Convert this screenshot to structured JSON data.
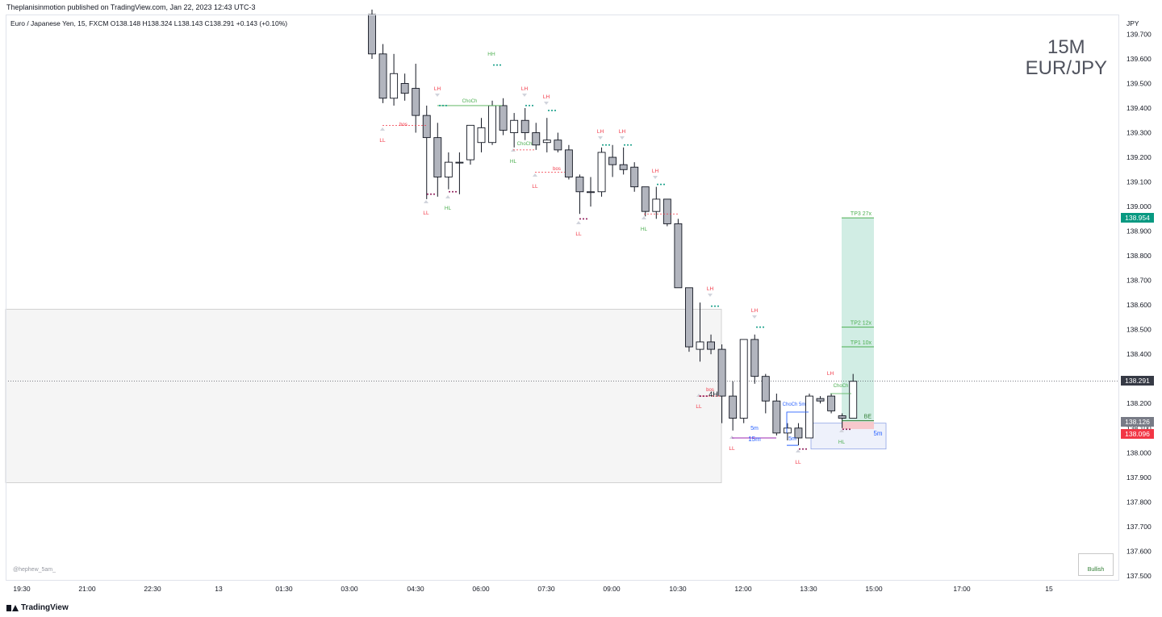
{
  "header": {
    "published": "Theplanisinmotion published on TradingView.com, Jan 22, 2023 12:43 UTC-3",
    "legend": "Euro / Japanese Yen, 15, FXCM  O138.148  H138.324  L138.143  C138.291  +0.143 (+0.10%)"
  },
  "symbol_title": {
    "line1": "15M",
    "line2": "EUR/JPY"
  },
  "watermark": "@hephew_5am_",
  "bullish_label": "Bullish",
  "brand": "TradingView",
  "colors": {
    "candle_up_fill": "#ffffff",
    "candle_down_fill": "#b2b5be",
    "candle_border": "#131722",
    "tp_zone": "#d1ede4",
    "tp_line": "#4caf50",
    "stop_zone": "#f7c8cc",
    "ob_zone": "#f5f5f5",
    "bos_line": "#f23645",
    "choch_green": "#4caf50",
    "label_red": "#f23645",
    "label_green": "#4caf50",
    "label_blue": "#2962ff",
    "badge_green": "#089981",
    "badge_dark": "#363a45",
    "badge_grey": "#787b86",
    "badge_red": "#f23645"
  },
  "chart_data": {
    "type": "candlestick",
    "ylabel": "JPY",
    "ylim": [
      137.48,
      139.78
    ],
    "yticks": [
      "139.700",
      "139.600",
      "139.500",
      "139.400",
      "139.300",
      "139.200",
      "139.100",
      "139.000",
      "138.900",
      "138.800",
      "138.700",
      "138.600",
      "138.500",
      "138.400",
      "138.300",
      "138.200",
      "138.100",
      "138.000",
      "137.900",
      "137.800",
      "137.700",
      "137.600",
      "137.500"
    ],
    "xticks": [
      "19:30",
      "21:00",
      "22:30",
      "13",
      "01:30",
      "03:00",
      "04:30",
      "06:00",
      "07:30",
      "09:00",
      "10:30",
      "12:00",
      "13:30",
      "15:00",
      "17:00",
      "15"
    ],
    "candles": [
      [
        139.78,
        139.8,
        139.6,
        139.62
      ],
      [
        139.62,
        139.66,
        139.42,
        139.44
      ],
      [
        139.44,
        139.62,
        139.41,
        139.54
      ],
      [
        139.5,
        139.54,
        139.43,
        139.46
      ],
      [
        139.48,
        139.58,
        139.3,
        139.37
      ],
      [
        139.37,
        139.41,
        139.03,
        139.28
      ],
      [
        139.28,
        139.34,
        139.04,
        139.12
      ],
      [
        139.12,
        139.22,
        139.07,
        139.18
      ],
      [
        139.18,
        139.22,
        139.05,
        139.18
      ],
      [
        139.19,
        139.33,
        139.17,
        139.33
      ],
      [
        139.26,
        139.36,
        139.22,
        139.32
      ],
      [
        139.26,
        139.43,
        139.25,
        139.41
      ],
      [
        139.41,
        139.44,
        139.29,
        139.31
      ],
      [
        139.3,
        139.38,
        139.24,
        139.35
      ],
      [
        139.35,
        139.4,
        139.27,
        139.3
      ],
      [
        139.3,
        139.34,
        139.23,
        139.25
      ],
      [
        139.26,
        139.36,
        139.22,
        139.27
      ],
      [
        139.27,
        139.3,
        139.22,
        139.23
      ],
      [
        139.23,
        139.25,
        139.11,
        139.12
      ],
      [
        139.12,
        139.13,
        138.97,
        139.06
      ],
      [
        139.06,
        139.12,
        139.0,
        139.06
      ],
      [
        139.06,
        139.24,
        139.04,
        139.22
      ],
      [
        139.2,
        139.25,
        139.12,
        139.17
      ],
      [
        139.17,
        139.24,
        139.13,
        139.15
      ],
      [
        139.16,
        139.18,
        139.06,
        139.08
      ],
      [
        139.08,
        139.08,
        138.96,
        138.98
      ],
      [
        138.98,
        139.08,
        138.95,
        139.03
      ],
      [
        139.03,
        139.03,
        138.92,
        138.93
      ],
      [
        138.93,
        138.95,
        138.69,
        138.67
      ],
      [
        138.67,
        138.67,
        138.41,
        138.43
      ],
      [
        138.42,
        138.61,
        138.37,
        138.45
      ],
      [
        138.45,
        138.48,
        138.4,
        138.42
      ],
      [
        138.42,
        138.44,
        138.12,
        138.23
      ],
      [
        138.23,
        138.29,
        138.09,
        138.14
      ],
      [
        138.14,
        138.46,
        138.12,
        138.46
      ],
      [
        138.46,
        138.48,
        138.28,
        138.31
      ],
      [
        138.31,
        138.32,
        138.16,
        138.21
      ],
      [
        138.21,
        138.24,
        138.07,
        138.08
      ],
      [
        138.08,
        138.12,
        138.05,
        138.1
      ],
      [
        138.1,
        138.12,
        138.03,
        138.06
      ],
      [
        138.06,
        138.24,
        138.06,
        138.23
      ],
      [
        138.22,
        138.23,
        138.2,
        138.21
      ],
      [
        138.23,
        138.24,
        138.16,
        138.17
      ],
      [
        138.15,
        138.16,
        138.1,
        138.14
      ],
      [
        138.14,
        138.32,
        138.14,
        138.29
      ]
    ],
    "last_prices": [
      {
        "label": "TP3",
        "value": "138.954"
      },
      {
        "label": "last",
        "value": "138.291"
      },
      {
        "label": "entry",
        "value": "138.126"
      },
      {
        "label": "stop",
        "value": "138.096"
      }
    ],
    "tp_levels": [
      {
        "label": "TP3 27x",
        "value": 138.954
      },
      {
        "label": "TP2 12x",
        "value": 138.51
      },
      {
        "label": "TP1 10x",
        "value": 138.43
      },
      {
        "label": "BE",
        "value": 138.13
      }
    ],
    "structure_labels": [
      {
        "text": "HH",
        "color": "green"
      },
      {
        "text": "LH",
        "color": "red"
      },
      {
        "text": "LL",
        "color": "red"
      },
      {
        "text": "HL",
        "color": "green"
      },
      {
        "text": "ChoCh",
        "color": "green"
      },
      {
        "text": "bos",
        "color": "red"
      },
      {
        "text": "4H",
        "color": "dark"
      },
      {
        "text": "5m",
        "color": "blue"
      },
      {
        "text": "15m",
        "color": "blue"
      },
      {
        "text": "ChoCh 5m",
        "color": "blue"
      }
    ]
  }
}
